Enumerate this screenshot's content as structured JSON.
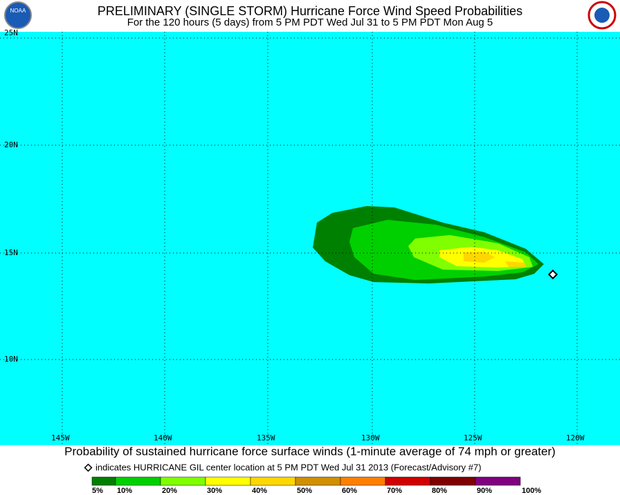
{
  "header": {
    "title": "PRELIMINARY (SINGLE STORM) Hurricane Force Wind Speed Probabilities",
    "subtitle": "For the 120 hours (5 days) from 5 PM PDT Wed Jul 31 to 5 PM PDT Mon Aug 5"
  },
  "map": {
    "lat_labels": [
      "25N",
      "20N",
      "15N",
      "10N"
    ],
    "lon_labels": [
      "145W",
      "140W",
      "135W",
      "130W",
      "125W",
      "120W"
    ]
  },
  "footer": {
    "caption": "Probability of sustained hurricane force surface winds (1-minute average of 74 mph or greater)",
    "note": "indicates HURRICANE GIL center location at 5 PM PDT Wed Jul 31 2013 (Forecast/Advisory #7)",
    "scale": {
      "labels": [
        "5%",
        "10%",
        "20%",
        "30%",
        "40%",
        "50%",
        "60%",
        "70%",
        "80%",
        "90%",
        "100%"
      ],
      "colors": [
        "#008000",
        "#00d000",
        "#80ff00",
        "#ffff00",
        "#ffd700",
        "#d09000",
        "#ff8000",
        "#d00000",
        "#800000",
        "#800080"
      ]
    }
  }
}
